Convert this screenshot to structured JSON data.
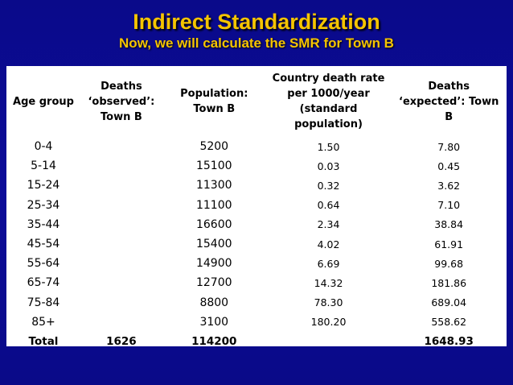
{
  "slide": {
    "title": "Indirect Standardization",
    "subtitle": "Now, we will calculate the SMR for Town B"
  },
  "table": {
    "headers": [
      "Age group",
      "Deaths ‘observed’: Town B",
      "Population: Town B",
      "Country death rate per 1000/year (standard population)",
      "Deaths ‘expected’: Town B"
    ],
    "rows": [
      {
        "age": "0-4",
        "observed": "",
        "population": "5200",
        "rate": "1.50",
        "expected": "7.80"
      },
      {
        "age": "5-14",
        "observed": "",
        "population": "15100",
        "rate": "0.03",
        "expected": "0.45"
      },
      {
        "age": "15-24",
        "observed": "",
        "population": "11300",
        "rate": "0.32",
        "expected": "3.62"
      },
      {
        "age": "25-34",
        "observed": "",
        "population": "11100",
        "rate": "0.64",
        "expected": "7.10"
      },
      {
        "age": "35-44",
        "observed": "",
        "population": "16600",
        "rate": "2.34",
        "expected": "38.84"
      },
      {
        "age": "45-54",
        "observed": "",
        "population": "15400",
        "rate": "4.02",
        "expected": "61.91"
      },
      {
        "age": "55-64",
        "observed": "",
        "population": "14900",
        "rate": "6.69",
        "expected": "99.68"
      },
      {
        "age": "65-74",
        "observed": "",
        "population": "12700",
        "rate": "14.32",
        "expected": "181.86"
      },
      {
        "age": "75-84",
        "observed": "",
        "population": "8800",
        "rate": "78.30",
        "expected": "689.04"
      },
      {
        "age": "85+",
        "observed": "",
        "population": "3100",
        "rate": "180.20",
        "expected": "558.62"
      }
    ],
    "total": {
      "label": "Total",
      "observed": "1626",
      "population": "114200",
      "rate": "",
      "expected": "1648.93"
    }
  },
  "colors": {
    "background": "#0c0c99",
    "title": "#f5c400",
    "table_bg": "#ffffff"
  }
}
